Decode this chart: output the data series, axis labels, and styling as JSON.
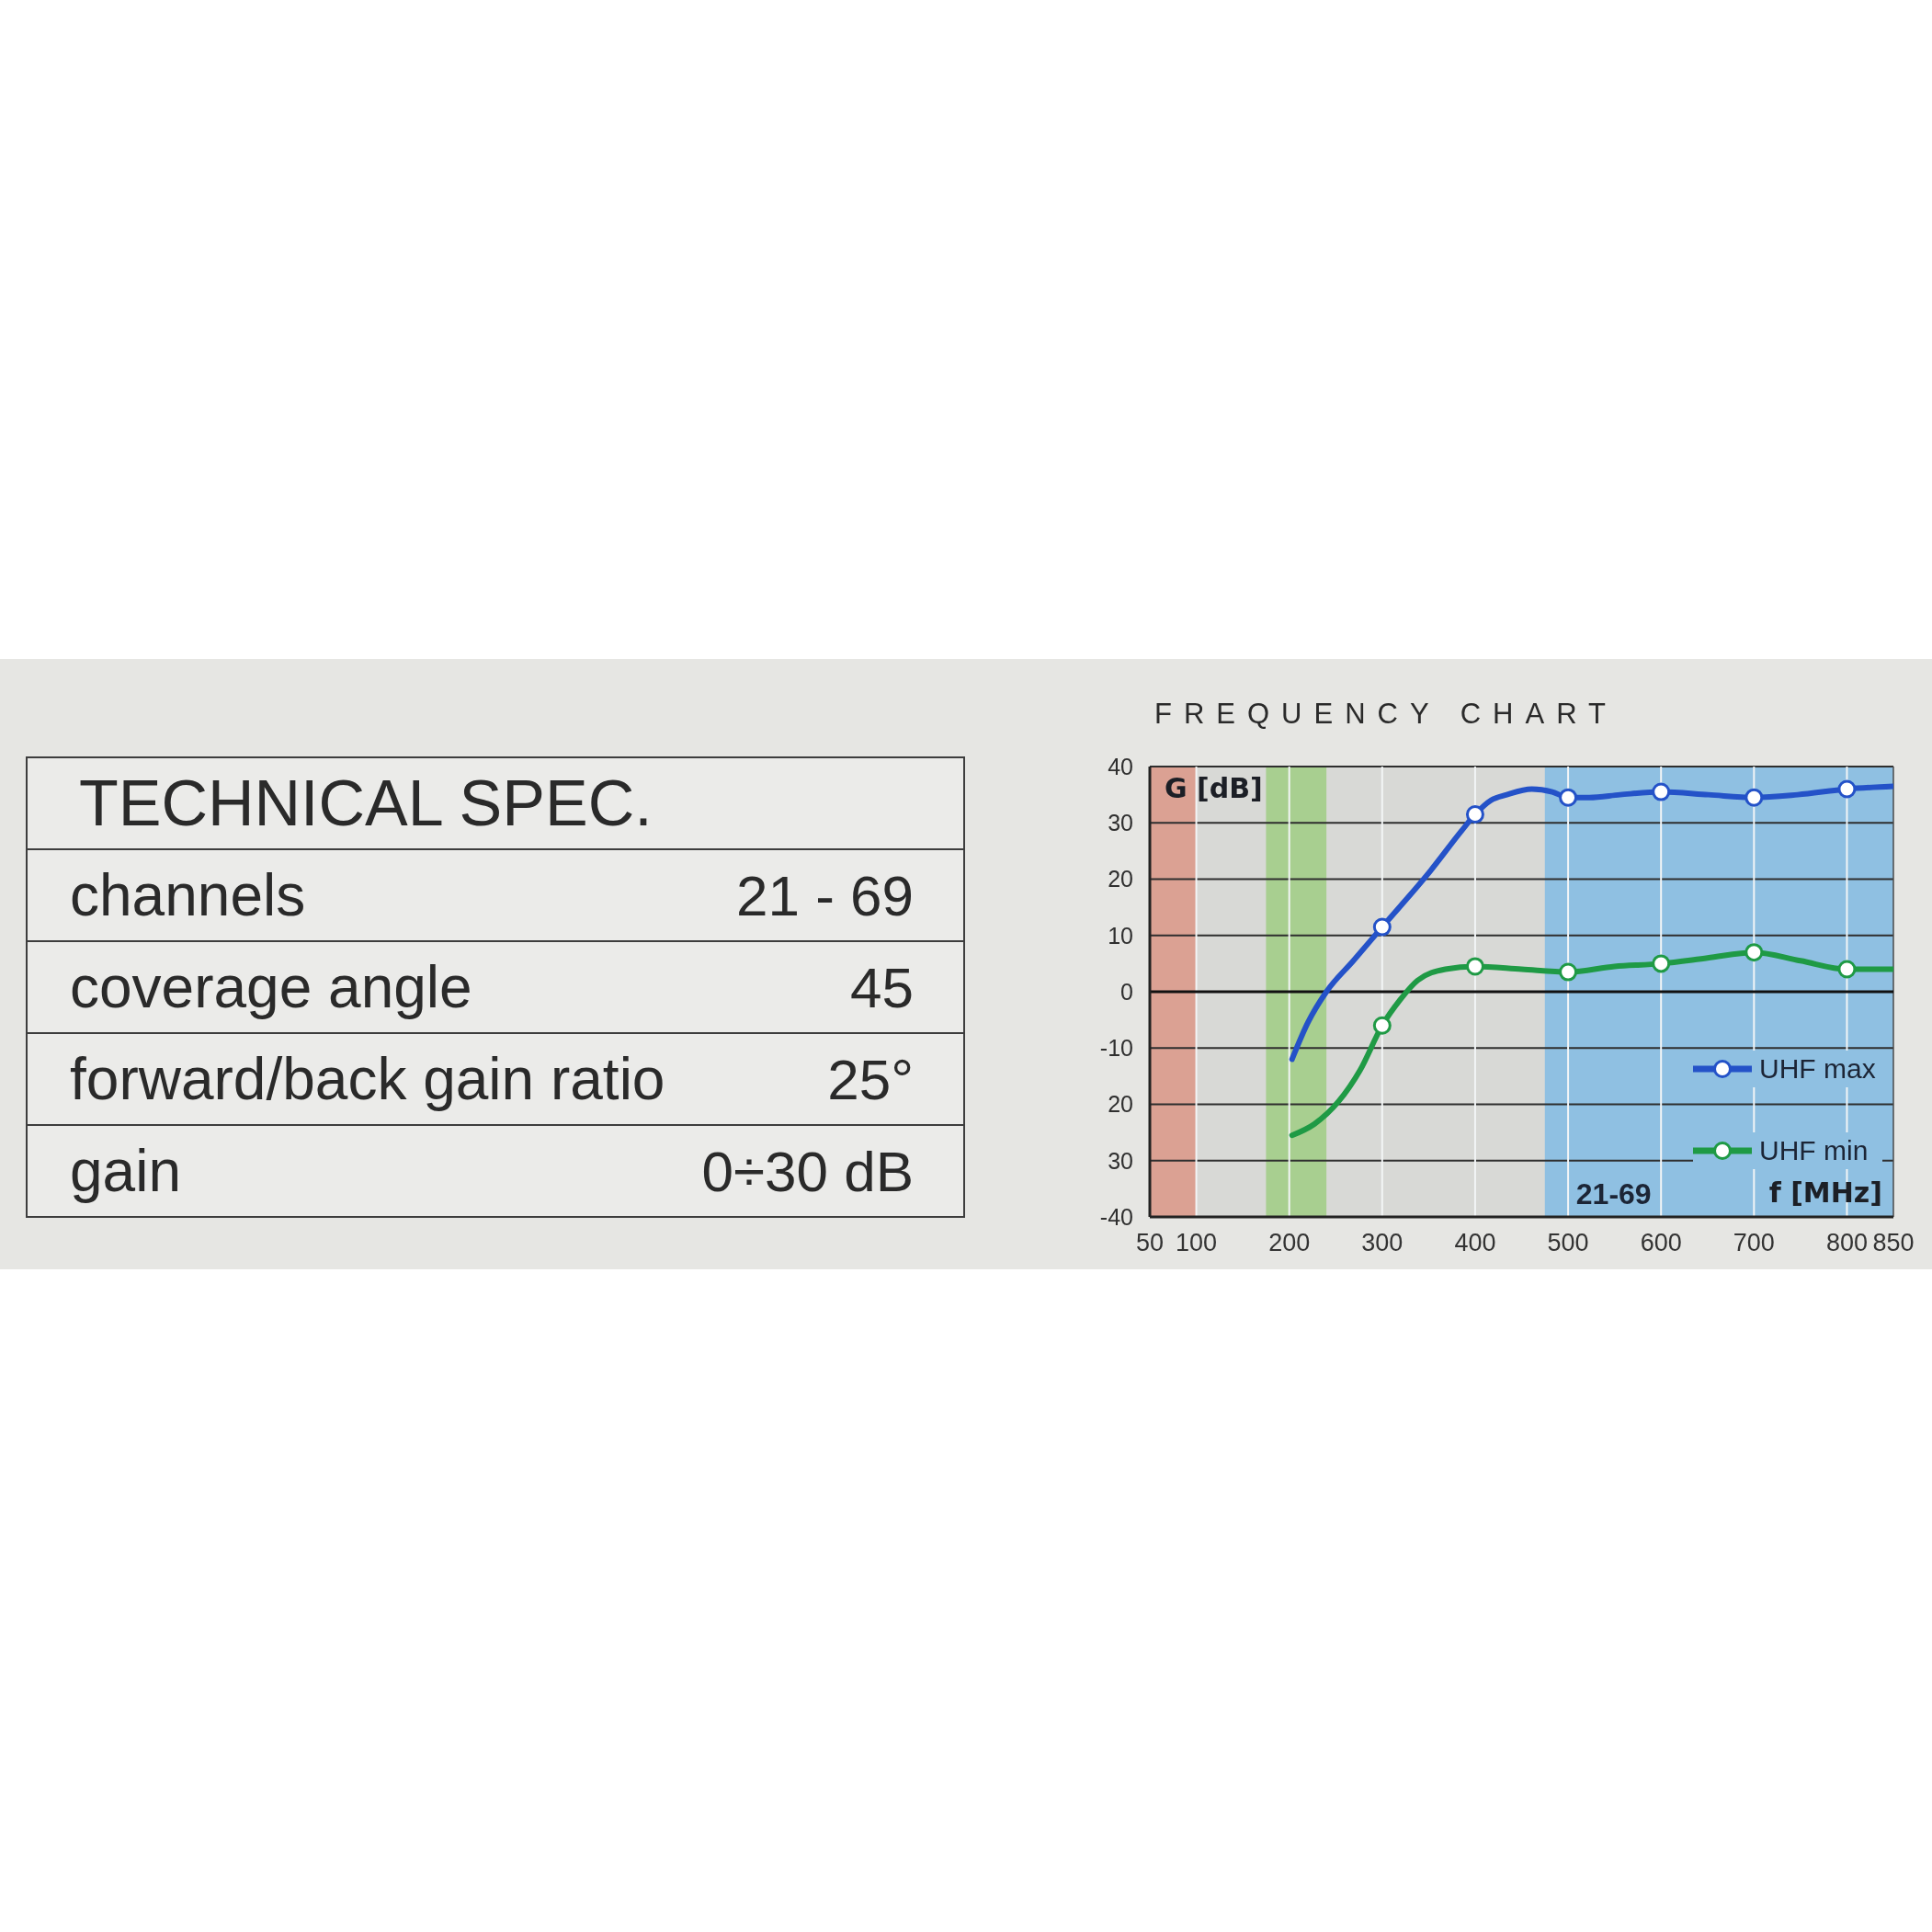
{
  "chart_data": [
    {
      "type": "other",
      "title": "TECHNICAL SPEC.",
      "annotations": [
        "channels",
        "21 - 69",
        "coverage angle",
        "45",
        "forward/back gain ratio",
        "25°",
        "gain",
        "0÷30 dB"
      ]
    },
    {
      "type": "line",
      "title": "FREQUENCY CHART",
      "xlabel": "f [MHz]",
      "ylabel": "G [dB]",
      "xlim": [
        50,
        850
      ],
      "xticks": [
        50,
        100,
        200,
        300,
        400,
        500,
        600,
        700,
        800,
        850
      ],
      "ylim": [
        -40,
        40
      ],
      "yticks": [
        -40,
        {
          "value": -30,
          "label": "30"
        },
        {
          "value": -20,
          "label": "20"
        },
        -10,
        0,
        10,
        20,
        30,
        40
      ],
      "series": [
        {
          "name": "UHF max",
          "type": "line",
          "color": "#2452c8",
          "marker": "none",
          "x": [
            203,
            220,
            240,
            269,
            300,
            352,
            385,
            400,
            417,
            434,
            461,
            483,
            500,
            523,
            556,
            600,
            651,
            700,
            747,
            800,
            850
          ],
          "values": [
            -12,
            -5.5,
            0,
            5.5,
            11.5,
            21.5,
            28.5,
            31.5,
            34,
            35,
            36,
            35.5,
            34.5,
            34.5,
            35,
            35.5,
            35,
            34.5,
            35,
            36,
            36.5
          ]
        },
        {
          "type": "scatter",
          "color": "#2452c8",
          "x": [
            300,
            400,
            500,
            600,
            700,
            800
          ],
          "values": [
            11.5,
            31.5,
            34.5,
            35.5,
            34.5,
            36
          ]
        },
        {
          "name": "UHF min",
          "type": "line",
          "color": "#1f9a45",
          "marker": "none",
          "x": [
            203,
            227,
            253,
            276,
            300,
            319,
            338,
            368,
            400,
            450,
            500,
            550,
            600,
            650,
            700,
            750,
            800,
            850
          ],
          "values": [
            -25.5,
            -23.5,
            -19.5,
            -14,
            -6,
            -1.5,
            2,
            4,
            4.5,
            4,
            3.5,
            4.5,
            5,
            6,
            7,
            5.5,
            4,
            4
          ]
        },
        {
          "type": "scatter",
          "color": "#1f9a45",
          "x": [
            300,
            400,
            500,
            600,
            700,
            800
          ],
          "values": [
            -6,
            4.5,
            3.5,
            5,
            7,
            4
          ]
        }
      ],
      "bands": [
        {
          "axis": "x",
          "from": 50,
          "to": 100,
          "color": "#dba193"
        },
        {
          "axis": "x",
          "from": 175,
          "to": 240,
          "color": "#a8cf90"
        },
        {
          "axis": "x",
          "from": 475,
          "to": 850,
          "color": "#8fc0e2",
          "label": "21-69"
        }
      ],
      "ref_lines": [
        {
          "axis": "y",
          "value": 0,
          "color": "#111111"
        }
      ],
      "grid": true,
      "legend": "bottom right",
      "marker": "circle"
    }
  ]
}
